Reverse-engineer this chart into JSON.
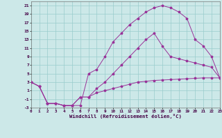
{
  "bg_color": "#cce8e8",
  "grid_color": "#99cccc",
  "line_color": "#993399",
  "xlim": [
    0,
    23
  ],
  "ylim": [
    -3,
    22
  ],
  "xticks": [
    0,
    1,
    2,
    3,
    4,
    5,
    6,
    7,
    8,
    9,
    10,
    11,
    12,
    13,
    14,
    15,
    16,
    17,
    18,
    19,
    20,
    21,
    22,
    23
  ],
  "yticks": [
    -3,
    -1,
    1,
    3,
    5,
    7,
    9,
    11,
    13,
    15,
    17,
    19,
    21
  ],
  "xlabel": "Windchill (Refroidissement éolien,°C)",
  "series1_x": [
    0,
    1,
    2,
    3,
    4,
    5,
    6,
    7,
    8,
    9,
    10,
    11,
    12,
    13,
    14,
    15,
    16,
    17,
    18,
    19,
    20,
    21,
    22,
    23
  ],
  "series1_y": [
    3.0,
    2.0,
    -2.0,
    -2.0,
    -2.5,
    -2.5,
    -2.5,
    5.0,
    6.0,
    9.0,
    12.5,
    14.5,
    16.5,
    18.0,
    19.5,
    20.5,
    21.0,
    20.5,
    19.5,
    18.0,
    13.0,
    11.5,
    9.0,
    4.0
  ],
  "series2_x": [
    0,
    1,
    2,
    3,
    4,
    5,
    6,
    7,
    8,
    9,
    10,
    11,
    12,
    13,
    14,
    15,
    16,
    17,
    18,
    19,
    20,
    21,
    22,
    23
  ],
  "series2_y": [
    3.0,
    2.0,
    -2.0,
    -2.0,
    -2.5,
    -2.5,
    -0.5,
    -0.5,
    1.5,
    3.0,
    5.0,
    7.0,
    9.0,
    11.0,
    13.0,
    14.5,
    11.5,
    9.0,
    8.5,
    8.0,
    7.5,
    7.0,
    6.5,
    4.0
  ],
  "series3_x": [
    0,
    1,
    2,
    3,
    4,
    5,
    6,
    7,
    8,
    9,
    10,
    11,
    12,
    13,
    14,
    15,
    16,
    17,
    18,
    19,
    20,
    21,
    22,
    23
  ],
  "series3_y": [
    3.0,
    2.0,
    -2.0,
    -2.0,
    -2.5,
    -2.5,
    -0.5,
    -0.5,
    0.5,
    1.0,
    1.5,
    2.0,
    2.5,
    3.0,
    3.2,
    3.4,
    3.5,
    3.6,
    3.7,
    3.8,
    3.9,
    4.0,
    4.0,
    4.0
  ]
}
